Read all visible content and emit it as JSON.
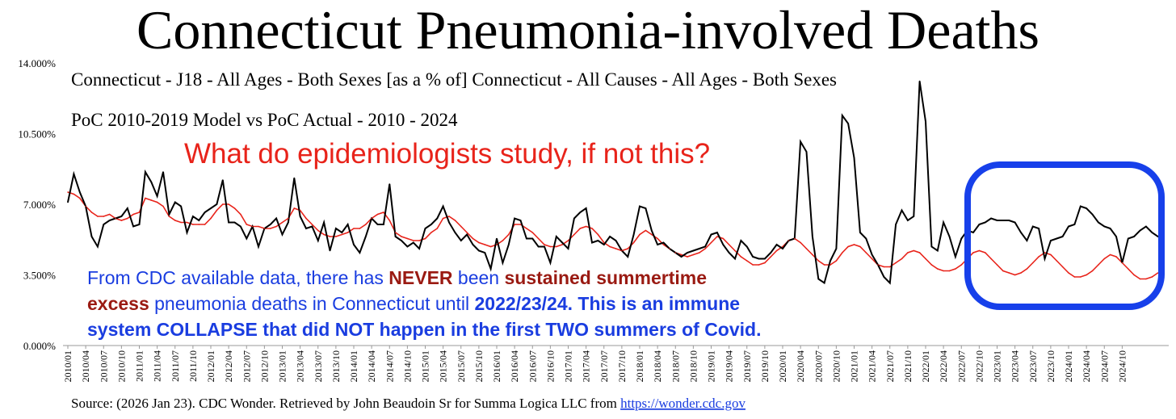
{
  "title": "Connecticut Pneumonia-involved Deaths",
  "subtitle_1": "Connecticut - J18 - All Ages - Both Sexes [as a % of] Connecticut - All Causes - All Ages - Both Sexes",
  "subtitle_2": "PoC 2010-2019 Model vs PoC Actual - 2010 - 2024",
  "annotation_question": "What do epidemiologists study, if not this?",
  "annotation_body": {
    "line1": [
      {
        "text": "From CDC available data, there has ",
        "style": "normal"
      },
      {
        "text": "NEVER",
        "style": "red"
      },
      {
        "text": " been ",
        "style": "normal"
      },
      {
        "text": "sustained summertime",
        "style": "red"
      }
    ],
    "line2": [
      {
        "text": "excess",
        "style": "red"
      },
      {
        "text": " pneumonia deaths in Connecticut until ",
        "style": "normal"
      },
      {
        "text": "2022/23/24. This is an immune",
        "style": "bold"
      }
    ],
    "line3": [
      {
        "text": "system COLLAPSE that did NOT happen in the first TWO summers of Covid.",
        "style": "bold"
      }
    ]
  },
  "source_text": "Source: (2026 Jan 23). CDC Wonder. Retrieved by John Beaudoin Sr for Summa Logica LLC from ",
  "source_link": "https://wonder.cdc.gov",
  "colors": {
    "actual": "#000000",
    "model": "#e8231a",
    "annotation_blue": "#1a3de0",
    "annotation_red": "#9a1a12",
    "highlight_box": "#1740ea",
    "axis": "#999999"
  },
  "chart_data": {
    "type": "line",
    "ylim": [
      0,
      14
    ],
    "y_ticks": [
      "0.000%",
      "3.500%",
      "7.000%",
      "10.500%",
      "14.000%"
    ],
    "x_start": "2010/01",
    "x_end": "2024/12",
    "x_tick_labels": [
      "2010/01",
      "2010/04",
      "2010/07",
      "2010/10",
      "2011/01",
      "2011/04",
      "2011/07",
      "2011/10",
      "2012/01",
      "2012/04",
      "2012/07",
      "2012/10",
      "2013/01",
      "2013/04",
      "2013/07",
      "2013/10",
      "2014/01",
      "2014/04",
      "2014/07",
      "2014/10",
      "2015/01",
      "2015/04",
      "2015/07",
      "2015/10",
      "2016/01",
      "2016/04",
      "2016/07",
      "2016/10",
      "2017/01",
      "2017/04",
      "2017/07",
      "2017/10",
      "2018/01",
      "2018/04",
      "2018/07",
      "2018/10",
      "2019/01",
      "2019/04",
      "2019/07",
      "2019/10",
      "2020/01",
      "2020/04",
      "2020/07",
      "2020/10",
      "2021/01",
      "2021/04",
      "2021/07",
      "2021/10",
      "2022/01",
      "2022/04",
      "2022/07",
      "2022/10",
      "2023/01",
      "2023/04",
      "2023/07",
      "2023/10",
      "2024/01",
      "2024/04",
      "2024/07",
      "2024/10"
    ],
    "series": [
      {
        "values": [
          7.1,
          8.5,
          7.6,
          6.9,
          5.4,
          4.9,
          6.0,
          6.2,
          6.3,
          6.4,
          6.8,
          5.9,
          6.0,
          8.6,
          8.1,
          7.4,
          8.6,
          6.5,
          7.1,
          6.9,
          5.6,
          6.4,
          6.2,
          6.6,
          6.8,
          7.0,
          8.2,
          6.1,
          6.1,
          5.9,
          5.3,
          5.9,
          4.9,
          5.8,
          6.0,
          6.3,
          5.5,
          6.1,
          8.3,
          6.4,
          5.8,
          5.9,
          5.2,
          6.1,
          4.7,
          5.8,
          5.6,
          6.0,
          5.0,
          4.6,
          5.4,
          6.3,
          6.0,
          6.0,
          8.0,
          5.4,
          5.2,
          4.9,
          5.1,
          4.8,
          5.8,
          6.0,
          6.3,
          6.9,
          6.1,
          5.6,
          5.2,
          5.5,
          5.0,
          4.7,
          4.6,
          3.8,
          5.3,
          4.1,
          5.0,
          6.3,
          6.2,
          5.3,
          5.3,
          4.9,
          4.9,
          4.1,
          5.4,
          5.1,
          4.8,
          6.3,
          6.6,
          6.8,
          5.1,
          5.2,
          5.0,
          5.4,
          5.2,
          4.7,
          4.4,
          5.5,
          6.9,
          6.8,
          5.7,
          5.0,
          5.1,
          4.8,
          4.6,
          4.4,
          4.6,
          4.7,
          4.8,
          4.9,
          5.5,
          5.6,
          5.0,
          4.6,
          4.3,
          5.2,
          4.9,
          4.4,
          4.3,
          4.3,
          4.6,
          5.0,
          4.8,
          5.2,
          5.3,
          10.1,
          9.6,
          5.4,
          3.3,
          3.1,
          4.2,
          4.8,
          11.4,
          11.0,
          9.3,
          5.6,
          5.3,
          4.5,
          4.0,
          3.4,
          3.1,
          6.0,
          6.7,
          6.2,
          6.4,
          13.1,
          11.1,
          4.9,
          4.7,
          6.1,
          5.4,
          4.4,
          5.3,
          5.7,
          5.6,
          6.0,
          6.1,
          6.3,
          6.2,
          6.2,
          6.2,
          6.1,
          5.6,
          5.2,
          5.9,
          5.8,
          4.3,
          5.2,
          5.3,
          5.4,
          5.9,
          6.0,
          6.9,
          6.8,
          6.5,
          6.1,
          5.9,
          5.8,
          5.4,
          4.1,
          5.3,
          5.4,
          5.7,
          5.9,
          5.6,
          5.4,
          5.3
        ]
      },
      {
        "values": [
          7.6,
          7.5,
          7.3,
          6.9,
          6.6,
          6.4,
          6.4,
          6.5,
          6.3,
          6.2,
          6.3,
          6.5,
          6.6,
          7.3,
          7.2,
          7.1,
          6.9,
          6.4,
          6.2,
          6.1,
          6.1,
          6.0,
          6.0,
          6.0,
          6.3,
          6.7,
          7.0,
          7.0,
          6.8,
          6.5,
          6.0,
          5.9,
          5.9,
          5.8,
          5.8,
          5.9,
          6.1,
          6.3,
          6.8,
          6.7,
          6.3,
          6.0,
          5.7,
          5.5,
          5.4,
          5.4,
          5.5,
          5.6,
          5.8,
          5.8,
          6.0,
          6.3,
          6.5,
          6.6,
          6.2,
          5.6,
          5.4,
          5.3,
          5.2,
          5.2,
          5.3,
          5.6,
          5.8,
          6.3,
          6.4,
          6.2,
          5.9,
          5.6,
          5.3,
          5.1,
          5.0,
          4.9,
          5.0,
          5.2,
          5.5,
          6.0,
          6.0,
          5.8,
          5.6,
          5.3,
          5.0,
          4.9,
          4.9,
          5.0,
          5.2,
          5.5,
          5.8,
          5.9,
          5.8,
          5.5,
          5.1,
          4.9,
          4.8,
          4.7,
          4.8,
          5.1,
          5.5,
          5.7,
          5.5,
          5.3,
          5.0,
          4.8,
          4.6,
          4.5,
          4.4,
          4.5,
          4.6,
          4.8,
          5.1,
          5.4,
          5.3,
          5.0,
          4.7,
          4.4,
          4.2,
          4.0,
          4.0,
          4.1,
          4.4,
          4.7,
          4.9,
          5.2,
          5.3,
          5.1,
          4.8,
          4.5,
          4.2,
          4.0,
          4.0,
          4.2,
          4.6,
          4.9,
          5.0,
          4.9,
          4.6,
          4.3,
          4.0,
          3.9,
          3.9,
          4.1,
          4.3,
          4.6,
          4.7,
          4.6,
          4.3,
          4.0,
          3.8,
          3.7,
          3.7,
          3.8,
          4.0,
          4.3,
          4.6,
          4.7,
          4.6,
          4.3,
          4.0,
          3.7,
          3.6,
          3.5,
          3.6,
          3.8,
          4.1,
          4.4,
          4.6,
          4.5,
          4.2,
          3.9,
          3.6,
          3.4,
          3.4,
          3.5,
          3.7,
          4.0,
          4.3,
          4.5,
          4.4,
          4.1,
          3.8,
          3.5,
          3.3,
          3.3,
          3.4,
          3.6
        ]
      }
    ],
    "grid": false,
    "legend": "none"
  }
}
